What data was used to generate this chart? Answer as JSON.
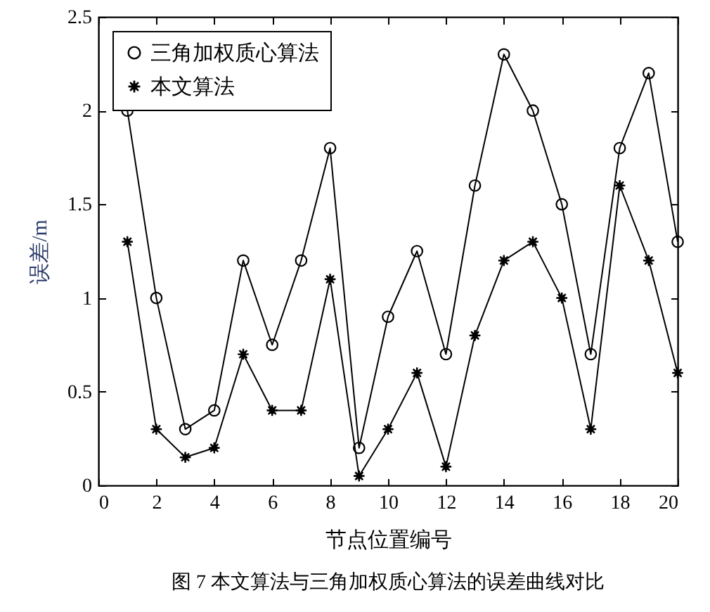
{
  "chart_data": {
    "type": "line",
    "xlabel": "节点位置编号",
    "ylabel": "误差/m",
    "annotations": [
      "图 7 本文算法与三角加权质心算法的误差曲线对比"
    ],
    "x": [
      1,
      2,
      3,
      4,
      5,
      6,
      7,
      8,
      9,
      10,
      11,
      12,
      13,
      14,
      15,
      16,
      17,
      18,
      19,
      20
    ],
    "series": [
      {
        "name": "三角加权质心算法",
        "color": "#000000",
        "marker": "circle",
        "values": [
          2.0,
          1.0,
          0.3,
          0.4,
          1.2,
          0.75,
          1.2,
          1.8,
          0.2,
          0.9,
          1.25,
          0.7,
          1.6,
          2.3,
          2.0,
          1.5,
          0.7,
          1.8,
          2.2,
          1.3
        ]
      },
      {
        "name": "本文算法",
        "color": "#000000",
        "marker": "star",
        "values": [
          1.3,
          0.3,
          0.15,
          0.2,
          0.7,
          0.4,
          0.4,
          1.1,
          0.05,
          0.3,
          0.6,
          0.1,
          0.8,
          1.2,
          1.3,
          1.0,
          0.3,
          1.6,
          1.2,
          0.6
        ]
      }
    ],
    "xlim": [
      0,
      20
    ],
    "xticks": [
      0,
      2,
      4,
      6,
      8,
      10,
      12,
      14,
      16,
      18,
      20
    ],
    "ylim": [
      0,
      2.5
    ],
    "yticks": [
      0,
      0.5,
      1,
      1.5,
      2,
      2.5
    ],
    "grid": false,
    "legend": "top left"
  }
}
